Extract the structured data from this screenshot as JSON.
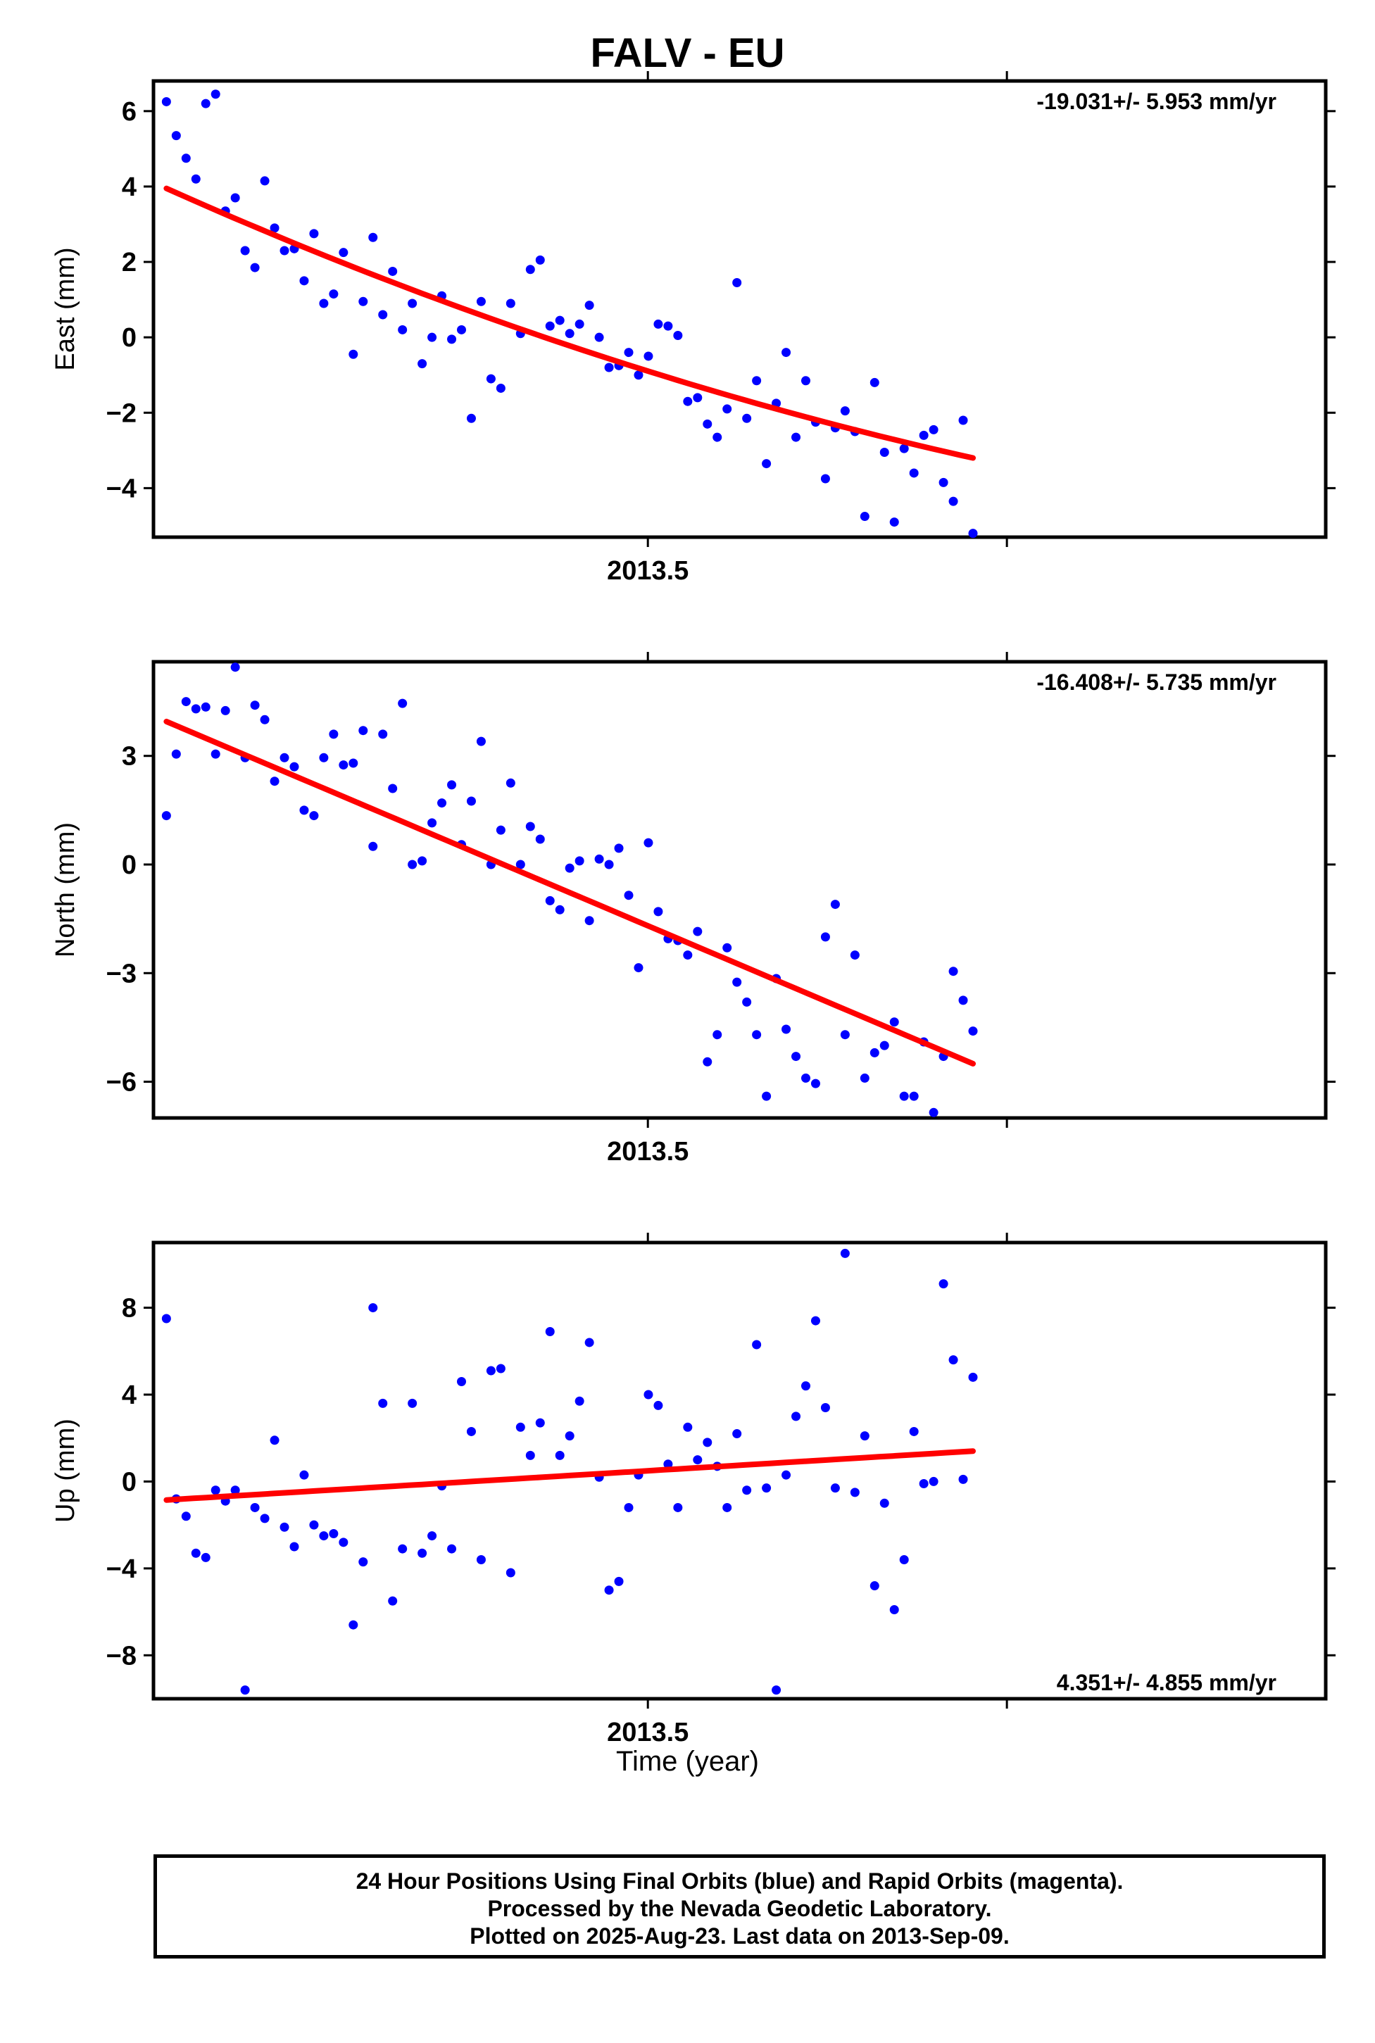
{
  "title": "FALV - EU",
  "xlabel": "Time (year)",
  "footer": {
    "line1": "24 Hour Positions Using Final Orbits (blue) and Rapid Orbits (magenta).",
    "line2": "Processed by the Nevada Geodetic Laboratory.",
    "line3": "Plotted on 2025-Aug-23. Last data on 2013-Sep-09."
  },
  "colors": {
    "final_orbits": "#0000ff",
    "trend": "#ff0000",
    "axes": "#000000"
  },
  "chart_data": [
    {
      "type": "scatter",
      "ylabel": "East (mm)",
      "rate_text": "-19.031+/- 5.953 mm/yr",
      "rate_position": "top-right",
      "xlim": [
        2013.3623,
        2013.6888
      ],
      "ylim": [
        -5.3,
        6.8
      ],
      "yticks": [
        -4,
        -2,
        0,
        2,
        4,
        6
      ],
      "xticks": [
        2013.5,
        2013.6
      ],
      "xtick_labels": [
        "2013.5",
        ""
      ],
      "x_start": 2013.3659,
      "x_step": 0.0027397,
      "series": [
        {
          "marker": "dot",
          "y": [
            6.25,
            5.35,
            4.75,
            4.2,
            6.2,
            6.45,
            3.35,
            3.7,
            2.3,
            1.85,
            4.15,
            2.9,
            2.3,
            2.35,
            1.5,
            2.75,
            0.9,
            1.15,
            2.25,
            -0.45,
            0.95,
            2.65,
            0.6,
            1.75,
            0.2,
            0.9,
            -0.7,
            0.0,
            1.1,
            -0.05,
            0.2,
            -2.15,
            0.95,
            -1.1,
            -1.35,
            0.9,
            0.1,
            1.8,
            2.05,
            0.3,
            0.45,
            0.1,
            0.35,
            0.85,
            0.0,
            -0.8,
            -0.75,
            -0.4,
            -1.0,
            -0.5,
            0.35,
            0.3,
            0.05,
            -1.7,
            -1.6,
            -2.3,
            -2.65,
            -1.9,
            1.45,
            -2.15,
            -1.15,
            -3.35,
            -1.75,
            -0.4,
            -2.65,
            -1.15,
            -2.25,
            -3.75,
            -2.4,
            -1.95,
            -2.5,
            -4.75,
            -1.2,
            -3.05,
            -4.9,
            -2.95,
            -3.6,
            -2.6,
            -2.45,
            -3.85,
            -4.35,
            -2.2,
            -5.2
          ]
        }
      ],
      "trend": {
        "start": 3.95,
        "end": -3.2,
        "curvature": -0.6
      }
    },
    {
      "type": "scatter",
      "ylabel": "North (mm)",
      "rate_text": "-16.408+/- 5.735 mm/yr",
      "rate_position": "top-right",
      "xlim": [
        2013.3623,
        2013.6888
      ],
      "ylim": [
        -7.0,
        5.6
      ],
      "yticks": [
        -6,
        -3,
        0,
        3
      ],
      "xticks": [
        2013.5,
        2013.6
      ],
      "xtick_labels": [
        "2013.5",
        ""
      ],
      "x_start": 2013.3659,
      "x_step": 0.0027397,
      "series": [
        {
          "marker": "dot",
          "y": [
            1.35,
            3.05,
            4.5,
            4.3,
            4.35,
            3.05,
            4.25,
            5.45,
            2.95,
            4.4,
            4.0,
            2.3,
            2.95,
            2.7,
            1.5,
            1.35,
            2.95,
            3.6,
            2.75,
            2.8,
            3.7,
            0.5,
            3.6,
            2.1,
            4.45,
            0.0,
            0.1,
            1.15,
            1.7,
            2.2,
            0.55,
            1.75,
            3.4,
            0.0,
            0.95,
            2.25,
            0.0,
            1.05,
            0.7,
            -1.0,
            -1.25,
            -0.1,
            0.1,
            -1.55,
            0.15,
            0.0,
            0.45,
            -0.85,
            -2.85,
            0.6,
            -1.3,
            -2.05,
            -2.1,
            -2.5,
            -1.85,
            -5.45,
            -4.7,
            -2.3,
            -3.25,
            -3.8,
            -4.7,
            -6.4,
            -3.15,
            -4.55,
            -5.3,
            -5.9,
            -6.05,
            -2.0,
            -1.1,
            -4.7,
            -2.5,
            -5.9,
            -5.2,
            -5.0,
            -4.35,
            -6.4,
            -6.4,
            -4.9,
            -6.85,
            -5.3,
            -2.95,
            -3.75,
            -4.6
          ]
        }
      ],
      "trend": {
        "start": 3.95,
        "end": -5.5,
        "curvature": 0
      }
    },
    {
      "type": "scatter",
      "ylabel": "Up (mm)",
      "rate_text": "4.351+/- 4.855 mm/yr",
      "rate_position": "bottom-right",
      "xlim": [
        2013.3623,
        2013.6888
      ],
      "ylim": [
        -10.0,
        11.0
      ],
      "yticks": [
        -8,
        -4,
        0,
        4,
        8
      ],
      "xticks": [
        2013.5,
        2013.6
      ],
      "xtick_labels": [
        "2013.5",
        ""
      ],
      "x_start": 2013.3659,
      "x_step": 0.0027397,
      "series": [
        {
          "marker": "dot",
          "y": [
            7.5,
            -0.8,
            -1.6,
            -3.3,
            -3.5,
            -0.4,
            -0.9,
            -0.4,
            -9.6,
            -1.2,
            -1.7,
            1.9,
            -2.1,
            -3.0,
            0.3,
            -2.0,
            -2.5,
            -2.4,
            -2.8,
            -6.6,
            -3.7,
            8.0,
            3.6,
            -5.5,
            -3.1,
            3.6,
            -3.3,
            -2.5,
            -0.2,
            -3.1,
            4.6,
            2.3,
            -3.6,
            5.1,
            5.2,
            -4.2,
            2.5,
            1.2,
            2.7,
            6.9,
            1.2,
            2.1,
            3.7,
            6.4,
            0.2,
            -5.0,
            -4.6,
            -1.2,
            0.3,
            4.0,
            3.5,
            0.8,
            -1.2,
            2.5,
            1.0,
            1.8,
            0.7,
            -1.2,
            2.2,
            -0.4,
            6.3,
            -0.3,
            -9.6,
            0.3,
            3.0,
            4.4,
            7.4,
            3.4,
            -0.3,
            10.5,
            -0.5,
            2.1,
            -4.8,
            -1.0,
            -5.9,
            -3.6,
            2.3,
            -0.1,
            0.0,
            9.1,
            5.6,
            0.1,
            4.8
          ]
        }
      ],
      "trend": {
        "start": -0.85,
        "end": 1.4,
        "curvature": 0
      }
    }
  ]
}
